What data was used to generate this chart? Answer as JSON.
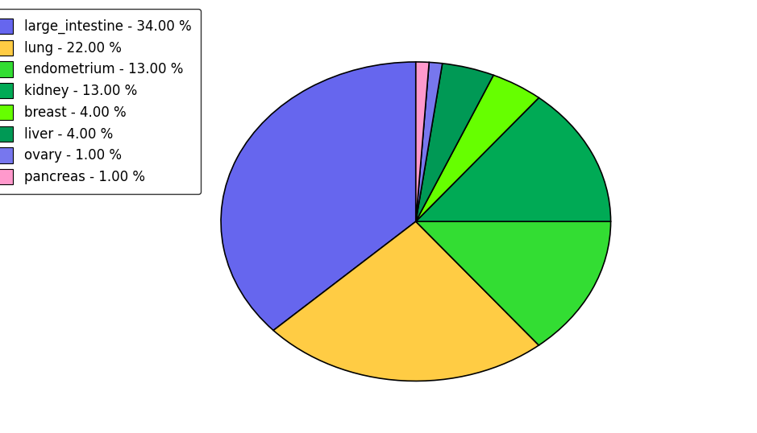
{
  "labels": [
    "large_intestine",
    "lung",
    "endometrium",
    "kidney",
    "breast",
    "liver",
    "ovary",
    "pancreas"
  ],
  "values": [
    34,
    22,
    13,
    13,
    4,
    4,
    1,
    1
  ],
  "colors": [
    "#6666ee",
    "#ffcc44",
    "#33dd33",
    "#00aa55",
    "#66ff00",
    "#009955",
    "#7777ee",
    "#ff99cc"
  ],
  "legend_labels": [
    "large_intestine - 34.00 %",
    "lung - 22.00 %",
    "endometrium - 13.00 %",
    "kidney - 13.00 %",
    "breast - 4.00 %",
    "liver - 4.00 %",
    "ovary - 1.00 %",
    "pancreas - 1.00 %"
  ],
  "startangle": 90,
  "figsize": [
    9.39,
    5.38
  ],
  "dpi": 100
}
